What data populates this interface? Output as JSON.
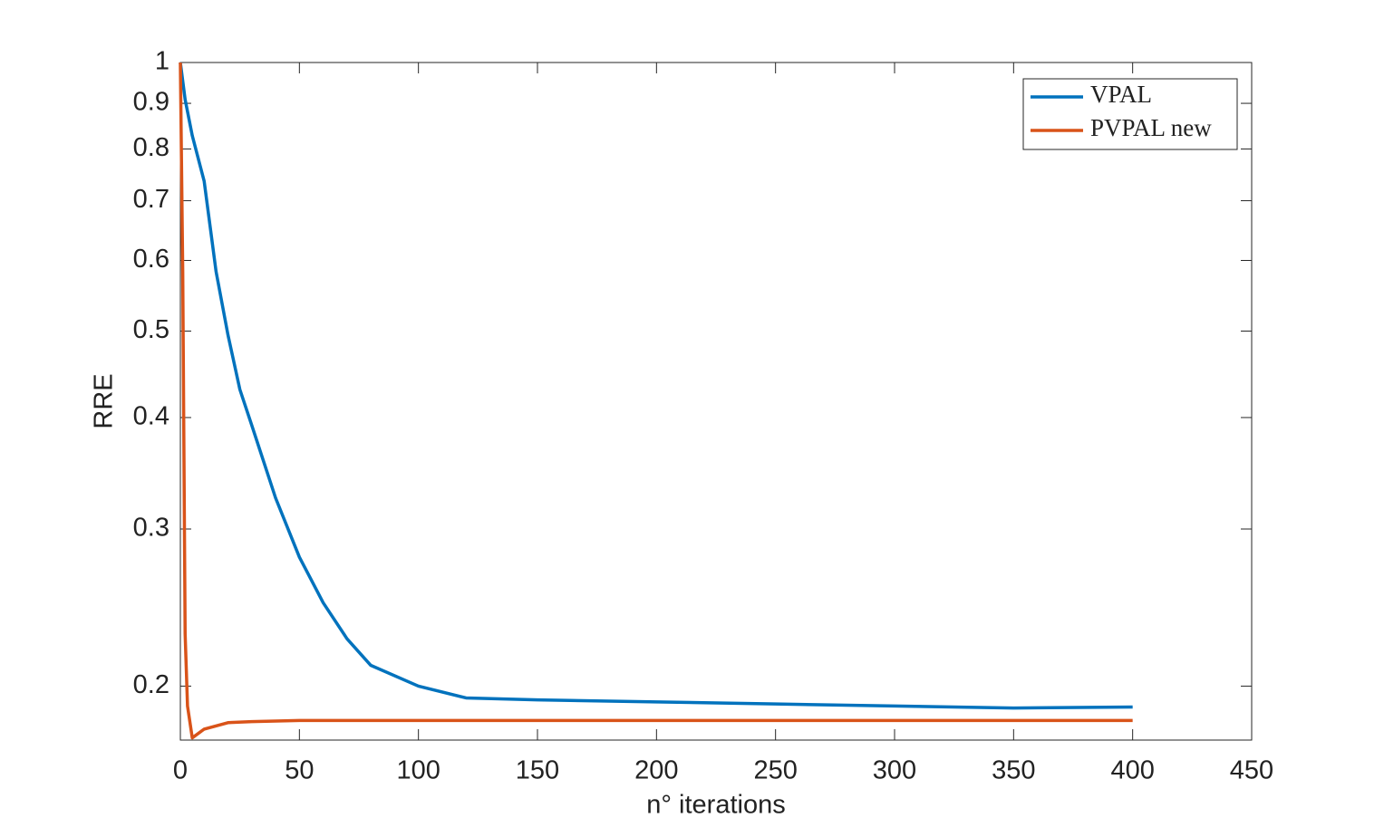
{
  "chart_data": {
    "type": "line",
    "xlabel": "n° iterations",
    "ylabel": "RRE",
    "xlim": [
      0,
      450
    ],
    "xticks": [
      0,
      50,
      100,
      150,
      200,
      250,
      300,
      350,
      400,
      450
    ],
    "ylim": [
      0.174,
      1
    ],
    "yticks": [
      0.2,
      0.3,
      0.4,
      0.5,
      0.6,
      0.7,
      0.8,
      0.9,
      1
    ],
    "yscale": "log",
    "grid": false,
    "legend": "upper right",
    "series": [
      {
        "name": "VPAL",
        "color": "#0072bd",
        "x": [
          0,
          2,
          5,
          10,
          15,
          20,
          25,
          30,
          40,
          50,
          60,
          70,
          80,
          100,
          120,
          150,
          200,
          250,
          300,
          350,
          400
        ],
        "values": [
          1.0,
          0.909,
          0.828,
          0.736,
          0.583,
          0.495,
          0.43,
          0.392,
          0.325,
          0.279,
          0.248,
          0.226,
          0.211,
          0.2,
          0.194,
          0.193,
          0.192,
          0.191,
          0.19,
          0.189,
          0.1895
        ]
      },
      {
        "name": "PVPAL new",
        "color": "#d95319",
        "x": [
          0,
          1,
          2,
          3,
          5,
          10,
          20,
          30,
          50,
          100,
          400
        ],
        "values": [
          1.0,
          0.583,
          0.229,
          0.19,
          0.175,
          0.179,
          0.182,
          0.1825,
          0.183,
          0.183,
          0.183
        ]
      }
    ]
  }
}
